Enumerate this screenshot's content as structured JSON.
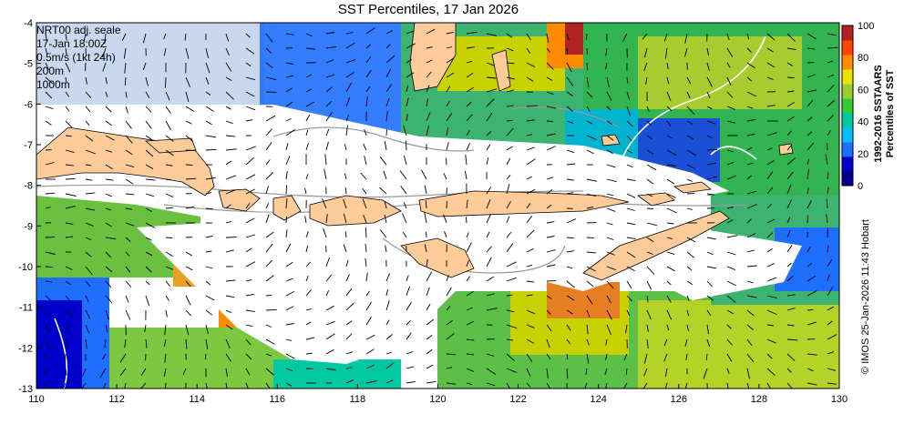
{
  "title": "SST Percentiles, 17 Jan 2026",
  "legend": {
    "line1": "NRT00 adj. seale",
    "line2": "17-Jan 18:00Z",
    "line3": "0.5m/s (1kt 24h)",
    "line4": "200m",
    "line5": "1000m"
  },
  "x_ticks": [
    "110",
    "112",
    "114",
    "116",
    "118",
    "120",
    "122",
    "124",
    "126",
    "128",
    "130"
  ],
  "y_ticks": [
    "-4",
    "-5",
    "-6",
    "-7",
    "-8",
    "-9",
    "-10",
    "-11",
    "-12",
    "-13"
  ],
  "colorbar": {
    "ticks": [
      "0",
      "20",
      "40",
      "60",
      "80",
      "100"
    ],
    "title_line1": "1992-2016 SSTAARS",
    "title_line2": "Percentiles of SST",
    "colors": [
      "#00008b",
      "#0000cd",
      "#1e6fff",
      "#00bfff",
      "#00c8a0",
      "#32cd32",
      "#9acd32",
      "#e6e600",
      "#ff8c00",
      "#ff4500",
      "#b22222"
    ]
  },
  "credit": "© IMOS 25-Jan-2026 11:43 Hobart",
  "colors": {
    "land": "#ffcc99",
    "ocean_no_data": "#ffffff",
    "contour": "#9a9a9a"
  }
}
